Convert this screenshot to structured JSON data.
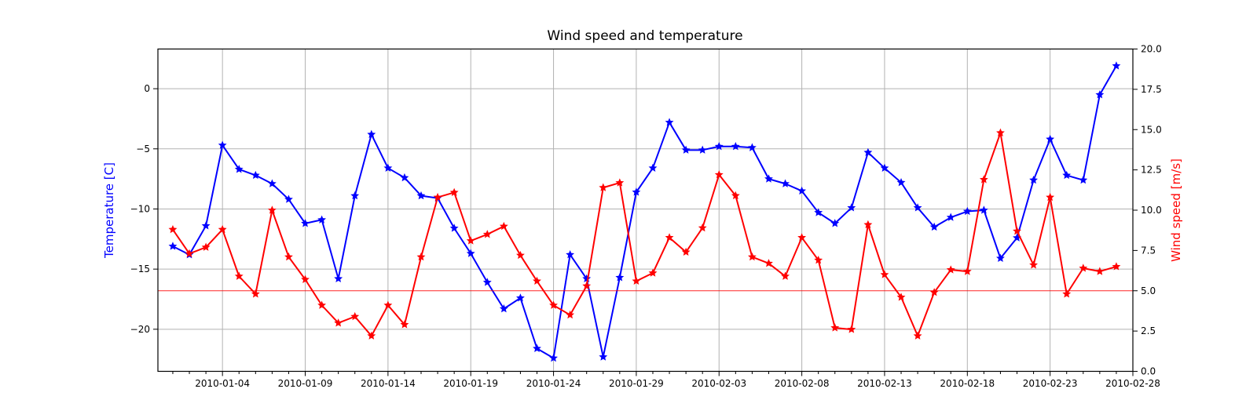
{
  "chart_data": {
    "type": "line",
    "title": "Wind speed and temperature",
    "x_dates": [
      "2010-01-01",
      "2010-01-02",
      "2010-01-03",
      "2010-01-04",
      "2010-01-05",
      "2010-01-06",
      "2010-01-07",
      "2010-01-08",
      "2010-01-09",
      "2010-01-10",
      "2010-01-11",
      "2010-01-12",
      "2010-01-13",
      "2010-01-14",
      "2010-01-15",
      "2010-01-16",
      "2010-01-17",
      "2010-01-18",
      "2010-01-19",
      "2010-01-20",
      "2010-01-21",
      "2010-01-22",
      "2010-01-23",
      "2010-01-24",
      "2010-01-25",
      "2010-01-26",
      "2010-01-27",
      "2010-01-28",
      "2010-01-29",
      "2010-01-30",
      "2010-01-31",
      "2010-02-01",
      "2010-02-02",
      "2010-02-03",
      "2010-02-04",
      "2010-02-05",
      "2010-02-06",
      "2010-02-07",
      "2010-02-08",
      "2010-02-09",
      "2010-02-10",
      "2010-02-11",
      "2010-02-12",
      "2010-02-13",
      "2010-02-14",
      "2010-02-15",
      "2010-02-16",
      "2010-02-17",
      "2010-02-18",
      "2010-02-19",
      "2010-02-20",
      "2010-02-21",
      "2010-02-22",
      "2010-02-23",
      "2010-02-24",
      "2010-02-25",
      "2010-02-26",
      "2010-02-27"
    ],
    "series": [
      {
        "name": "Temperature",
        "axis": "left",
        "color": "#0000ff",
        "marker": "star",
        "values": [
          -13.1,
          -13.8,
          -11.4,
          -4.7,
          -6.7,
          -7.2,
          -7.9,
          -9.2,
          -11.2,
          -10.9,
          -15.8,
          -8.9,
          -3.8,
          -6.6,
          -7.4,
          -8.9,
          -9.1,
          -11.6,
          -13.7,
          -16.1,
          -18.3,
          -17.4,
          -21.6,
          -22.4,
          -13.8,
          -15.8,
          -22.3,
          -15.7,
          -8.6,
          -6.6,
          -2.8,
          -5.1,
          -5.1,
          -4.8,
          -4.8,
          -4.9,
          -7.5,
          -7.9,
          -8.5,
          -10.3,
          -11.2,
          -9.9,
          -5.3,
          -6.6,
          -7.8,
          -9.9,
          -11.5,
          -10.7,
          -10.2,
          -10.1,
          -14.1,
          -12.4,
          -7.6,
          -4.2,
          -7.2,
          -7.6,
          -0.5,
          1.9
        ]
      },
      {
        "name": "Wind speed",
        "axis": "right",
        "color": "#ff0000",
        "marker": "star",
        "values": [
          8.8,
          7.3,
          7.7,
          8.8,
          5.9,
          4.8,
          10.0,
          7.1,
          5.7,
          4.1,
          3.0,
          3.4,
          2.2,
          4.1,
          2.9,
          7.1,
          10.8,
          11.1,
          8.1,
          8.5,
          9.0,
          7.2,
          5.6,
          4.1,
          3.5,
          5.3,
          11.4,
          11.7,
          5.6,
          6.1,
          8.3,
          7.4,
          8.9,
          12.2,
          10.9,
          7.1,
          6.7,
          5.9,
          8.3,
          6.9,
          2.7,
          2.6,
          9.1,
          6.0,
          4.6,
          2.2,
          4.9,
          6.3,
          6.2,
          11.9,
          14.8,
          8.7,
          6.6,
          10.8,
          4.8,
          6.4,
          6.2,
          6.5
        ]
      }
    ],
    "left_axis": {
      "label": "Temperature [C]",
      "color": "#0000ff",
      "tick_values": [
        0,
        -5,
        -10,
        -15,
        -20
      ],
      "tick_labels": [
        "0",
        "−5",
        "−10",
        "−15",
        "−20"
      ],
      "range": [
        -23.5,
        3.3
      ]
    },
    "right_axis": {
      "label": "Wind speed [m/s]",
      "color": "#ff0000",
      "tick_values": [
        0,
        2.5,
        5,
        7.5,
        10,
        12.5,
        15,
        17.5,
        20
      ],
      "tick_labels": [
        "0.0",
        "2.5",
        "5.0",
        "7.5",
        "10.0",
        "12.5",
        "15.0",
        "17.5",
        "20.0"
      ],
      "range": [
        0,
        20
      ]
    },
    "x_axis": {
      "range_days": [
        -0.9,
        58
      ],
      "major_tick_day_indices": [
        3,
        8,
        13,
        18,
        23,
        28,
        33,
        38,
        43,
        48,
        53,
        58
      ],
      "tick_labels": [
        "2010-01-04",
        "2010-01-09",
        "2010-01-14",
        "2010-01-19",
        "2010-01-24",
        "2010-01-29",
        "2010-02-03",
        "2010-02-08",
        "2010-02-13",
        "2010-02-18",
        "2010-02-23",
        "2010-02-28"
      ],
      "minor_tick_interval_days": 1
    },
    "reference_line": {
      "axis": "right",
      "value": 5.0,
      "color": "#ff0000"
    },
    "grid": {
      "show": true,
      "color": "#b2b2b2"
    },
    "spine_color": "#000000",
    "background": "#ffffff"
  }
}
